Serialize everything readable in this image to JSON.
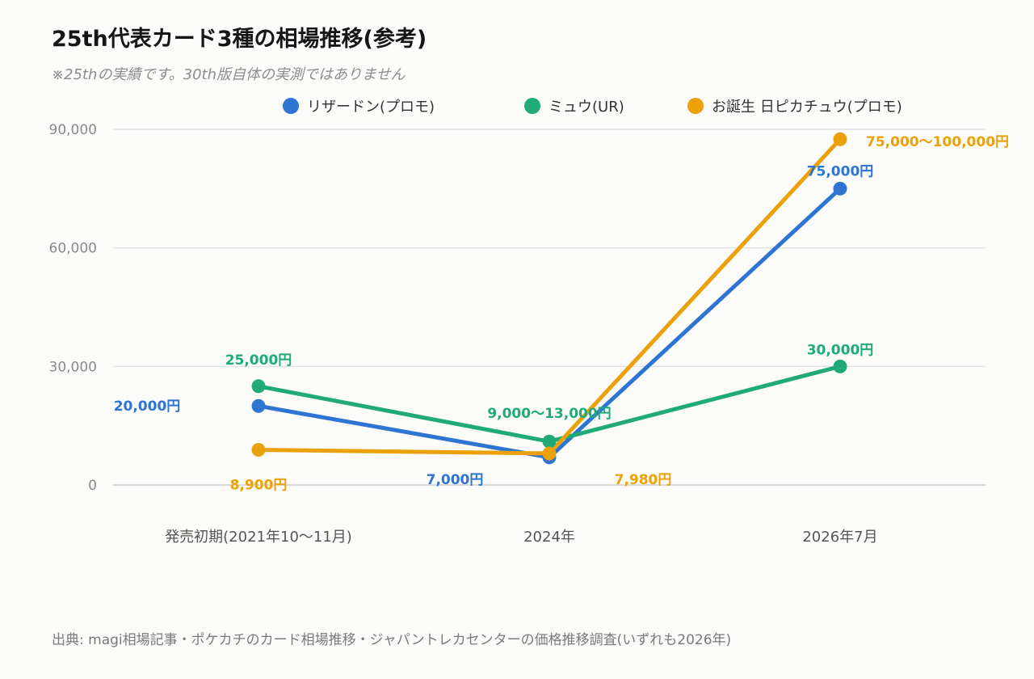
{
  "title": "25th代表カード3種の相場推移(参考)",
  "subtitle": "※25thの実績です。30th版自体の実測ではありません",
  "source": "出典: magi相場記事・ポケカチのカード相場推移・ジャパントレカセンターの価格推移調査(いずれも2026年)",
  "chart_data": {
    "type": "line",
    "categories": [
      "発売初期(2021年10〜11月)",
      "2024年",
      "2026年7月"
    ],
    "ylim": [
      0,
      90000
    ],
    "yticks": [
      0,
      30000,
      60000,
      90000
    ],
    "ytick_labels": [
      "0",
      "30,000",
      "60,000",
      "90,000"
    ],
    "grid": true,
    "legend_position": "top",
    "series": [
      {
        "name": "リザードン(プロモ)",
        "color": "#2e75d3",
        "values": [
          20000,
          7000,
          75000
        ],
        "labels": [
          "20,000円",
          "7,000円",
          "75,000円"
        ]
      },
      {
        "name": "ミュウ(UR)",
        "color": "#20aa7a",
        "values": [
          25000,
          11000,
          30000
        ],
        "labels": [
          "25,000円",
          "9,000〜13,000円",
          "30,000円"
        ]
      },
      {
        "name": "お誕生 日ピカチュウ(プロモ)",
        "color": "#eba10b",
        "values": [
          8900,
          7980,
          87500
        ],
        "labels": [
          "8,900円",
          "7,980円",
          "75,000〜100,000円"
        ]
      }
    ]
  }
}
